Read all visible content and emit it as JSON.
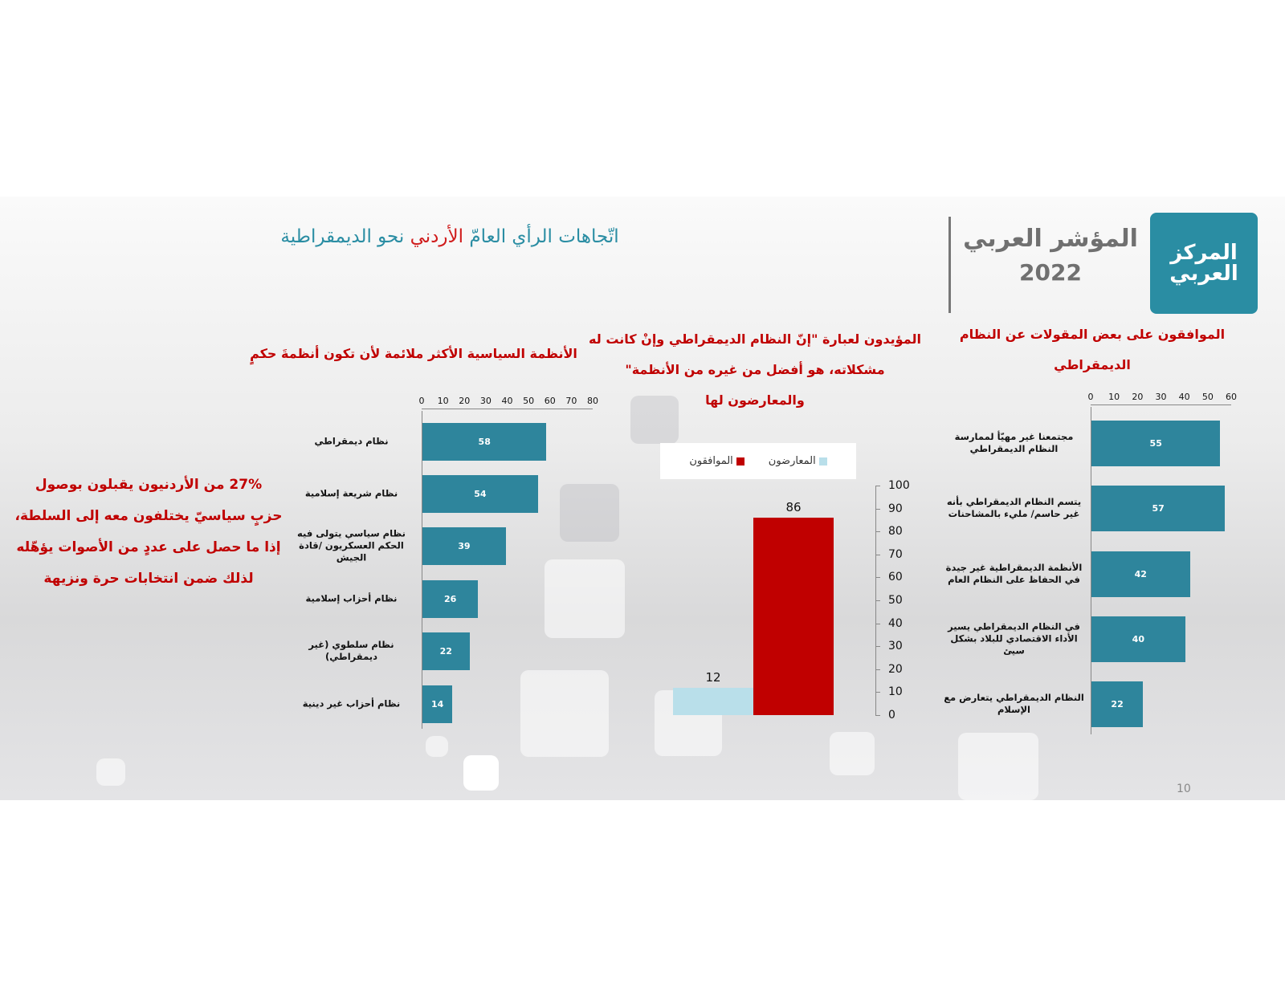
{
  "header": {
    "title_part1": "اتّجاهات الرأي العامّ",
    "title_highlight": "الأردني",
    "title_part2": "نحو الديمقراطية",
    "brand_name": "المؤشر العربي",
    "brand_year": "2022",
    "logo_text": "المركز العربي",
    "accent_color": "#2a8da3",
    "highlight_color": "#d01c1c"
  },
  "note": {
    "lines": [
      "27% من الأردنيون يقبلون بوصول",
      "حزبٍ سياسيّ يختلفون معه إلى السلطة،",
      "إذا ما حصل على عددٍ من الأصوات يؤهّله",
      "لذلك ضمن انتخابات حرة ونزيهة"
    ]
  },
  "page_number": "10",
  "chart_data": [
    {
      "type": "bar",
      "orientation": "horizontal",
      "title": "الأنظمة السياسية الأكثر ملائمة لأن تكون أنظمةَ حكمٍ",
      "categories": [
        "نظام ديمقراطي",
        "نظام شريعة إسلامية",
        "نظام سياسي يتولى فيه الحكم العسكريون /قادة الجيش",
        "نظام أحزاب إسلامية",
        "نظام سلطوي (غير ديمقراطي)",
        "نظام أحزاب غير دينية"
      ],
      "values": [
        58,
        54,
        39,
        26,
        22,
        14
      ],
      "xlim": [
        0,
        80
      ],
      "ticks": [
        "0",
        "10",
        "20",
        "30",
        "40",
        "50",
        "60",
        "70",
        "80"
      ],
      "color": "#2e859c"
    },
    {
      "type": "bar",
      "orientation": "vertical",
      "title": "المؤيدون لعبارة \"إنّ النظام الديمقراطي وإنْ كانت له مشكلاته، هو أفضل من غيره من الأنظمة\" والمعارضون لها",
      "title_lines": [
        "المؤيدون لعبارة \"إنّ النظام الديمقراطي وإنْ كانت له",
        "مشكلاته، هو أفضل من غيره من الأنظمة\"",
        "والمعارضون لها"
      ],
      "series": [
        {
          "name": "المعارضون",
          "values": [
            12
          ],
          "color": "#b9dfea"
        },
        {
          "name": "الموافقون",
          "values": [
            86
          ],
          "color": "#c00000"
        }
      ],
      "ylim": [
        0,
        100
      ],
      "ticks": [
        "0",
        "10",
        "20",
        "30",
        "40",
        "50",
        "60",
        "70",
        "80",
        "90",
        "100"
      ],
      "legend": "top"
    },
    {
      "type": "bar",
      "orientation": "horizontal",
      "title": "الموافقون على بعض المقولات عن النظام الديمقراطي",
      "title_lines": [
        "الموافقون على بعض المقولات عن النظام",
        "الديمقراطي"
      ],
      "categories": [
        "مجتمعنا غير مهيّأ لممارسة النظام الديمقراطي",
        "يتسم النظام الديمقراطي بأنه غير حاسم/ مليء بالمشاحنات",
        "الأنظمة الديمقراطية غير جيدة في الحفاظ على النظام العام",
        "في النظام الديمقراطي يسير الأداء الاقتصادي للبلاد بشكل سيئ",
        "النظام الديمقراطي يتعارض مع الإسلام"
      ],
      "values": [
        55,
        57,
        42,
        40,
        22
      ],
      "xlim": [
        0,
        60
      ],
      "ticks": [
        "0",
        "10",
        "20",
        "30",
        "40",
        "50",
        "60"
      ],
      "color": "#2e859c"
    }
  ]
}
